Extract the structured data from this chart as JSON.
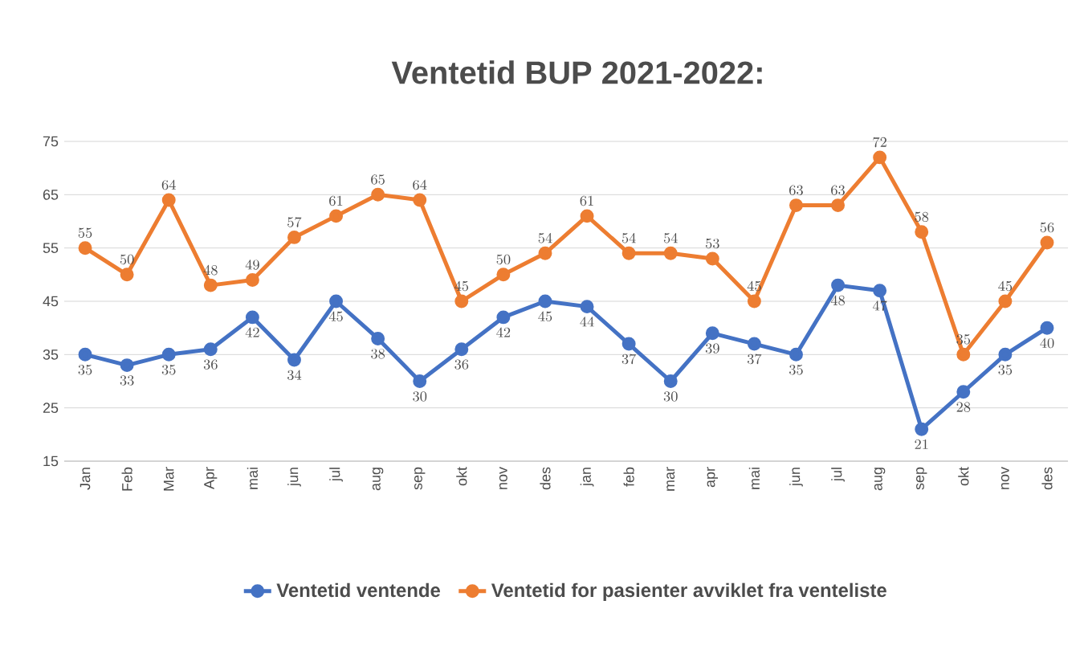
{
  "chart_data": {
    "type": "line",
    "title": "Ventetid BUP 2021-2022:",
    "categories": [
      "Jan",
      "Feb",
      "Mar",
      "Apr",
      "mai",
      "jun",
      "jul",
      "aug",
      "sep",
      "okt",
      "nov",
      "des",
      "jan",
      "feb",
      "mar",
      "apr",
      "mai",
      "jun",
      "jul",
      "aug",
      "sep",
      "okt",
      "nov",
      "des"
    ],
    "series": [
      {
        "name": "Ventetid ventende",
        "color": "#4472c4",
        "values": [
          35,
          33,
          35,
          36,
          42,
          34,
          45,
          38,
          30,
          36,
          42,
          45,
          44,
          37,
          30,
          39,
          37,
          35,
          48,
          47,
          21,
          28,
          35,
          40
        ]
      },
      {
        "name": "Ventetid for pasienter avviklet fra venteliste",
        "color": "#ed7d31",
        "values": [
          55,
          50,
          64,
          48,
          49,
          57,
          61,
          65,
          64,
          45,
          50,
          54,
          61,
          54,
          54,
          53,
          45,
          63,
          63,
          72,
          58,
          35,
          45,
          56
        ]
      }
    ],
    "ylim": [
      15,
      75
    ],
    "yticks": [
      15,
      25,
      35,
      45,
      55,
      65,
      75
    ],
    "grid": "y",
    "legend": "bottom",
    "marker": "circle",
    "line_style": "solid",
    "data_labels": true
  }
}
